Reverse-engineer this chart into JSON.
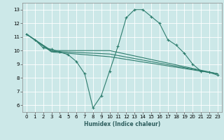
{
  "title": "",
  "xlabel": "Humidex (Indice chaleur)",
  "ylabel": "",
  "bg_color": "#cce8e8",
  "grid_color": "#ffffff",
  "line_color": "#2e7d6e",
  "xlim": [
    -0.5,
    23.5
  ],
  "ylim": [
    5.5,
    13.5
  ],
  "xticks": [
    0,
    1,
    2,
    3,
    4,
    5,
    6,
    7,
    8,
    9,
    10,
    11,
    12,
    13,
    14,
    15,
    16,
    17,
    18,
    19,
    20,
    21,
    22,
    23
  ],
  "yticks": [
    6,
    7,
    8,
    9,
    10,
    11,
    12,
    13
  ],
  "lines": [
    {
      "x": [
        0,
        1,
        2,
        3,
        4,
        5,
        6,
        7,
        8,
        9,
        10,
        11,
        12,
        13,
        14,
        15,
        16,
        17,
        18,
        19,
        20,
        21,
        22,
        23
      ],
      "y": [
        11.2,
        10.8,
        10.2,
        10.1,
        9.9,
        9.7,
        9.2,
        8.3,
        5.8,
        6.7,
        8.5,
        10.3,
        12.4,
        13.0,
        13.0,
        12.5,
        12.0,
        10.8,
        10.4,
        9.8,
        9.0,
        8.5,
        8.4,
        8.2
      ],
      "marker": "+"
    },
    {
      "x": [
        0,
        3,
        10,
        23
      ],
      "y": [
        11.2,
        10.0,
        10.0,
        8.3
      ]
    },
    {
      "x": [
        0,
        3,
        10,
        23
      ],
      "y": [
        11.2,
        9.95,
        9.75,
        8.3
      ]
    },
    {
      "x": [
        0,
        3,
        10,
        23
      ],
      "y": [
        11.2,
        9.9,
        9.55,
        8.3
      ]
    }
  ]
}
